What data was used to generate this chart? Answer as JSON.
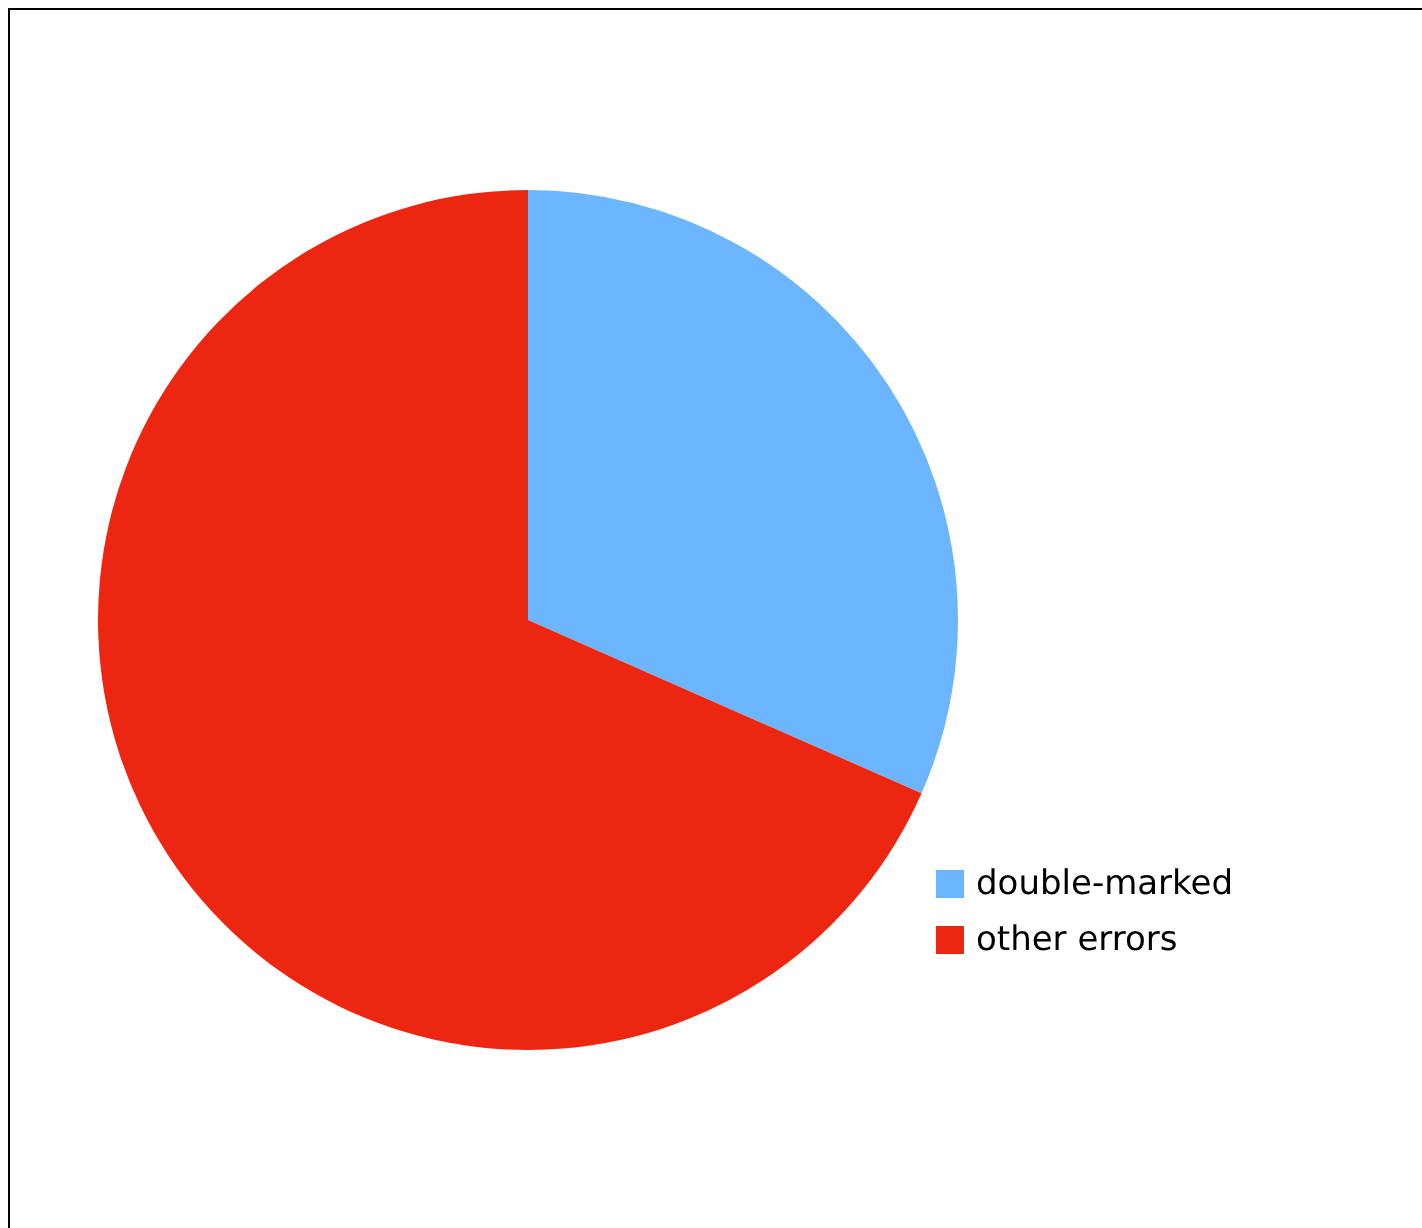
{
  "chart_data": {
    "type": "pie",
    "categories": [
      "double-marked",
      "other errors"
    ],
    "values": [
      31.6,
      68.4
    ],
    "colors": [
      "#6cb6ff",
      "#ec2610"
    ],
    "legend": "right"
  }
}
